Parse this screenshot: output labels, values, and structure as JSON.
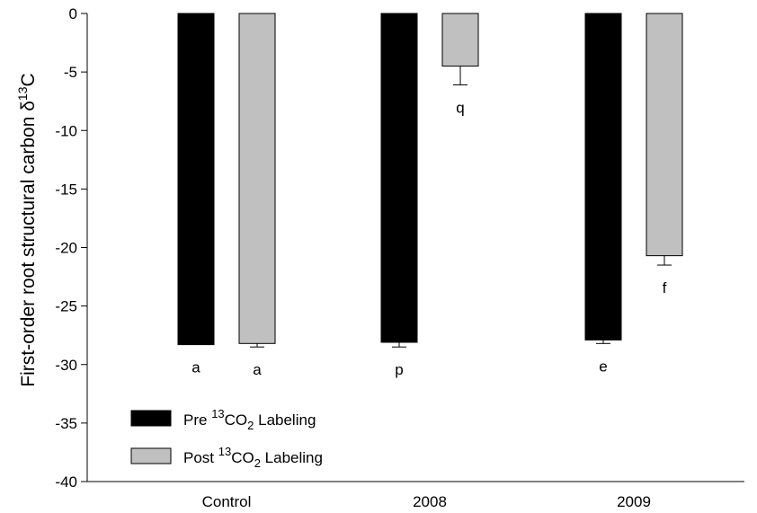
{
  "chart_data": {
    "type": "bar",
    "title": "",
    "xlabel": "",
    "ylabel": {
      "prefix": "First-order root structural carbon δ",
      "superscript": "13",
      "suffix": "C"
    },
    "ylim": [
      -40,
      0
    ],
    "yticks": [
      0,
      -5,
      -10,
      -15,
      -20,
      -25,
      -30,
      -35,
      -40
    ],
    "categories": [
      "Control",
      "2008",
      "2009"
    ],
    "series": [
      {
        "name": "Pre 13CO2 Labeling",
        "legend": {
          "before": "Pre ",
          "sup": "13",
          "mid": "CO",
          "sub": "2",
          "after": " Labeling"
        },
        "color": "#000000",
        "values": [
          -28.3,
          -28.1,
          -27.9
        ],
        "errors": [
          0,
          0.4,
          0.3
        ],
        "labels": [
          "a",
          "p",
          "e"
        ]
      },
      {
        "name": "Post 13CO2 Labeling",
        "legend": {
          "before": "Post ",
          "sup": "13",
          "mid": "CO",
          "sub": "2",
          "after": " Labeling"
        },
        "color": "#c0c0c0",
        "values": [
          -28.2,
          -4.5,
          -20.7
        ],
        "errors": [
          0.3,
          1.6,
          0.8
        ],
        "labels": [
          "a",
          "q",
          "f"
        ]
      }
    ],
    "legend_position": "bottom-left",
    "grid": false
  }
}
